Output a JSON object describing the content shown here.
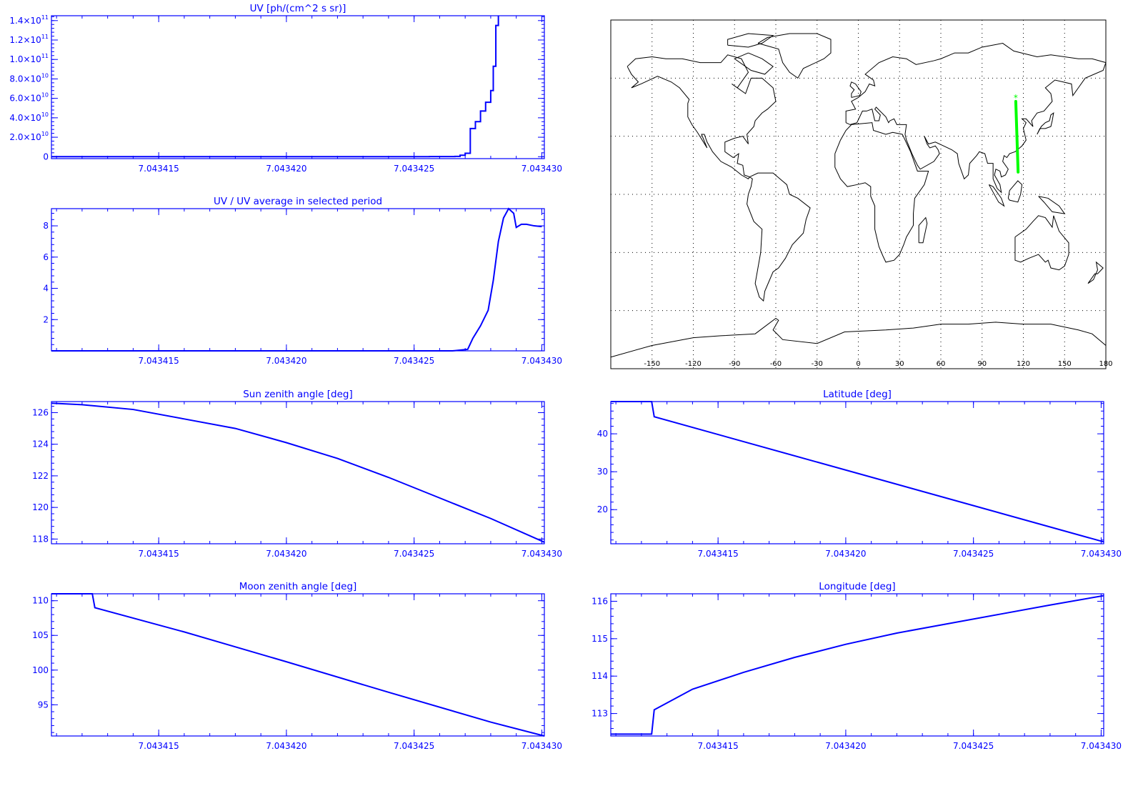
{
  "colors": {
    "plot": "#0000ff",
    "track": "#00ff00",
    "map_lines": "#000000",
    "background": "#ffffff"
  },
  "chart_data": [
    {
      "id": "uv",
      "type": "line",
      "step": true,
      "title": "UV [ph/(cm^2 s sr)]",
      "xlabel": "",
      "ylabel": "",
      "xlim": [
        7.0434108,
        7.0434301
      ],
      "ylim": [
        -2000000000.0,
        145000000000.0
      ],
      "xticks": [
        7.043415,
        7.04342,
        7.043425,
        7.04343
      ],
      "xtick_labels": [
        "7.043415",
        "7.043420",
        "7.043425",
        "7.043430"
      ],
      "yticks": [
        0,
        20000000000.0,
        40000000000.0,
        60000000000.0,
        80000000000.0,
        100000000000.0,
        120000000000.0,
        140000000000.0
      ],
      "ytick_labels": [
        {
          "m": "0",
          "e": ""
        },
        {
          "m": "2.0×10",
          "e": "10"
        },
        {
          "m": "4.0×10",
          "e": "10"
        },
        {
          "m": "6.0×10",
          "e": "10"
        },
        {
          "m": "8.0×10",
          "e": "10"
        },
        {
          "m": "1.0×10",
          "e": "11"
        },
        {
          "m": "1.2×10",
          "e": "11"
        },
        {
          "m": "1.4×10",
          "e": "11"
        }
      ],
      "x": [
        7.0434108,
        7.043425,
        7.0434256,
        7.0434266,
        7.0434268,
        7.043427,
        7.0434272,
        7.0434274,
        7.0434276,
        7.0434278,
        7.043428,
        7.0434281,
        7.0434282,
        7.0434283
      ],
      "y": [
        0,
        0,
        100000000.0,
        300000000.0,
        1500000000.0,
        3500000000.0,
        29000000000.0,
        36000000000.0,
        47000000000.0,
        56000000000.0,
        68000000000.0,
        93000000000.0,
        135000000000.0,
        145000000000.0
      ]
    },
    {
      "id": "uv_ratio",
      "type": "line",
      "title": "UV / UV average in selected period",
      "xlabel": "",
      "ylabel": "",
      "xlim": [
        7.0434108,
        7.0434301
      ],
      "ylim": [
        0,
        9.1
      ],
      "xticks": [
        7.043415,
        7.04342,
        7.043425,
        7.04343
      ],
      "xtick_labels": [
        "7.043415",
        "7.043420",
        "7.043425",
        "7.043430"
      ],
      "yticks": [
        2,
        4,
        6,
        8
      ],
      "ytick_labels": [
        {
          "m": "2",
          "e": ""
        },
        {
          "m": "4",
          "e": ""
        },
        {
          "m": "6",
          "e": ""
        },
        {
          "m": "8",
          "e": ""
        }
      ],
      "x": [
        7.0434108,
        7.0434265,
        7.0434271,
        7.0434273,
        7.0434276,
        7.0434279,
        7.0434281,
        7.0434283,
        7.0434285,
        7.0434287,
        7.0434289,
        7.043429,
        7.0434292,
        7.0434294,
        7.0434297,
        7.04343
      ],
      "y": [
        0,
        0,
        0.1,
        0.8,
        1.6,
        2.6,
        4.5,
        7.0,
        8.5,
        9.1,
        8.8,
        7.9,
        8.1,
        8.1,
        8.0,
        7.95
      ]
    },
    {
      "id": "sun_zenith",
      "type": "line",
      "title": "Sun zenith angle [deg]",
      "xlabel": "",
      "ylabel": "",
      "xlim": [
        7.0434108,
        7.0434301
      ],
      "ylim": [
        117.7,
        126.7
      ],
      "xticks": [
        7.043415,
        7.04342,
        7.043425,
        7.04343
      ],
      "xtick_labels": [
        "7.043415",
        "7.043420",
        "7.043425",
        "7.043430"
      ],
      "yticks": [
        118,
        120,
        122,
        124,
        126
      ],
      "ytick_labels": [
        {
          "m": "118",
          "e": ""
        },
        {
          "m": "120",
          "e": ""
        },
        {
          "m": "122",
          "e": ""
        },
        {
          "m": "124",
          "e": ""
        },
        {
          "m": "126",
          "e": ""
        }
      ],
      "x": [
        7.0434108,
        7.043412,
        7.043414,
        7.043416,
        7.043418,
        7.04342,
        7.043422,
        7.043424,
        7.043426,
        7.043428,
        7.0434301
      ],
      "y": [
        126.6,
        126.5,
        126.2,
        125.6,
        125.0,
        124.1,
        123.1,
        121.9,
        120.6,
        119.3,
        117.8
      ]
    },
    {
      "id": "moon_zenith",
      "type": "line",
      "title": "Moon zenith angle [deg]",
      "xlabel": "",
      "ylabel": "",
      "xlim": [
        7.0434108,
        7.0434301
      ],
      "ylim": [
        90.5,
        111.0
      ],
      "xticks": [
        7.043415,
        7.04342,
        7.043425,
        7.04343
      ],
      "xtick_labels": [
        "7.043415",
        "7.043420",
        "7.043425",
        "7.043430"
      ],
      "yticks": [
        95,
        100,
        105,
        110
      ],
      "ytick_labels": [
        {
          "m": "95",
          "e": ""
        },
        {
          "m": "100",
          "e": ""
        },
        {
          "m": "105",
          "e": ""
        },
        {
          "m": "110",
          "e": ""
        }
      ],
      "x": [
        7.0434108,
        7.0434124,
        7.0434125,
        7.043416,
        7.04342,
        7.043424,
        7.043428,
        7.0434301
      ],
      "y": [
        111.0,
        111.0,
        109.0,
        105.5,
        101.2,
        96.8,
        92.5,
        90.5
      ]
    },
    {
      "id": "latitude",
      "type": "line",
      "title": "Latitude [deg]",
      "xlabel": "",
      "ylabel": "",
      "xlim": [
        7.0434108,
        7.0434301
      ],
      "ylim": [
        11.0,
        48.5
      ],
      "xticks": [
        7.043415,
        7.04342,
        7.043425,
        7.04343
      ],
      "xtick_labels": [
        "7.043415",
        "7.043420",
        "7.043425",
        "7.043430"
      ],
      "yticks": [
        20,
        30,
        40
      ],
      "ytick_labels": [
        {
          "m": "20",
          "e": ""
        },
        {
          "m": "30",
          "e": ""
        },
        {
          "m": "40",
          "e": ""
        }
      ],
      "x": [
        7.0434108,
        7.0434124,
        7.0434125,
        7.0434301
      ],
      "y": [
        48.5,
        48.5,
        44.5,
        11.5
      ]
    },
    {
      "id": "longitude",
      "type": "line",
      "title": "Longitude [deg]",
      "xlabel": "",
      "ylabel": "",
      "xlim": [
        7.0434108,
        7.0434301
      ],
      "ylim": [
        112.4,
        116.2
      ],
      "xticks": [
        7.043415,
        7.04342,
        7.043425,
        7.04343
      ],
      "xtick_labels": [
        "7.043415",
        "7.043420",
        "7.043425",
        "7.043430"
      ],
      "yticks": [
        113,
        114,
        115,
        116
      ],
      "ytick_labels": [
        {
          "m": "113",
          "e": ""
        },
        {
          "m": "114",
          "e": ""
        },
        {
          "m": "115",
          "e": ""
        },
        {
          "m": "116",
          "e": ""
        }
      ],
      "x": [
        7.0434108,
        7.0434124,
        7.0434125,
        7.043414,
        7.043416,
        7.043418,
        7.04342,
        7.043422,
        7.043424,
        7.043426,
        7.043428,
        7.0434301
      ],
      "y": [
        112.45,
        112.45,
        113.1,
        113.65,
        114.1,
        114.5,
        114.85,
        115.15,
        115.4,
        115.65,
        115.9,
        116.15
      ]
    }
  ],
  "map": {
    "type": "map",
    "projection": "cylindrical",
    "lon_range": [
      -180,
      180
    ],
    "lat_range": [
      -90,
      90
    ],
    "grid": "dotted",
    "lon_ticks": [
      -150,
      -120,
      -90,
      -60,
      -30,
      0,
      30,
      60,
      90,
      120,
      150,
      180
    ],
    "lon_tick_labels": [
      "-150",
      "-120",
      "-90",
      "-60",
      "-30",
      "0",
      "30",
      "60",
      "90",
      "120",
      "150",
      "180"
    ],
    "lat_gridlines": [
      -60,
      -30,
      0,
      30,
      60
    ],
    "track": {
      "lon": [
        114.5,
        116.2
      ],
      "lat": [
        48.0,
        11.5
      ],
      "marker": "*"
    }
  }
}
